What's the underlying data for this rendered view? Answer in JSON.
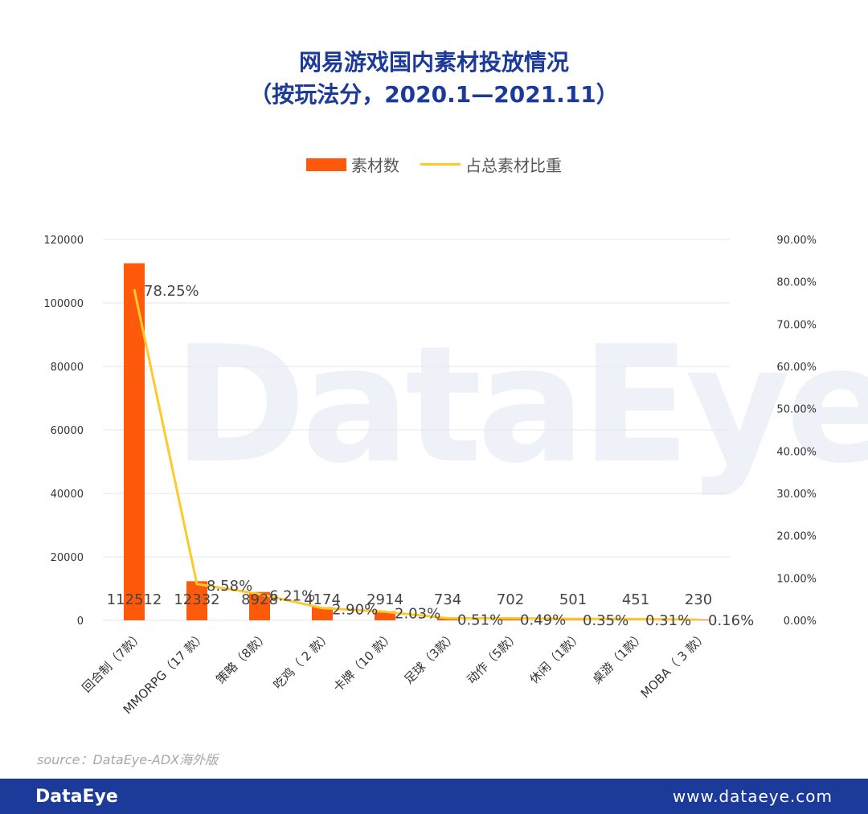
{
  "title_line1": "网易游戏国内素材投放情况",
  "title_line2": "（按玩法分，2020.1—2021.11）",
  "watermark": "DataEye",
  "legend": {
    "bar": "素材数",
    "line": "占总素材比重"
  },
  "source": "source：DataEye-ADX海外版",
  "footer": {
    "brand": "DataEye",
    "url": "www.dataeye.com"
  },
  "colors": {
    "bar": "#ff5a0c",
    "line": "#ffc92b",
    "title": "#1c3a9a",
    "footer": "#1c3a9a"
  },
  "chart_data": {
    "type": "bar",
    "categories": [
      "回合制（7款）",
      "MMORPG（17 款）",
      "策略（8款）",
      "吃鸡（ 2 款）",
      "卡牌（10 款）",
      "足球（3款）",
      "动作（5款）",
      "休闲（1款）",
      "桌游（1款）",
      "MOBA（ 3 款）"
    ],
    "series": [
      {
        "name": "素材数",
        "type": "bar",
        "axis": "left",
        "values": [
          112512,
          12332,
          8928,
          4174,
          2914,
          734,
          702,
          501,
          451,
          230
        ]
      },
      {
        "name": "占总素材比重",
        "type": "line",
        "axis": "right",
        "values": [
          78.25,
          8.58,
          6.21,
          2.9,
          2.03,
          0.51,
          0.49,
          0.35,
          0.31,
          0.16
        ],
        "labels": [
          "78.25%",
          "8.58%",
          "6.21%",
          "2.90%",
          "2.03%",
          "0.51%",
          "0.49%",
          "0.35%",
          "0.31%",
          "0.16%"
        ]
      }
    ],
    "left_axis": {
      "ylim": [
        0,
        120000
      ],
      "ticks": [
        "0",
        "20000",
        "40000",
        "60000",
        "80000",
        "100000",
        "120000"
      ]
    },
    "right_axis": {
      "ylim": [
        0,
        90
      ],
      "ticks": [
        "0.00%",
        "10.00%",
        "20.00%",
        "30.00%",
        "40.00%",
        "50.00%",
        "60.00%",
        "70.00%",
        "80.00%",
        "90.00%"
      ]
    },
    "grid": true,
    "legend_position": "top"
  }
}
